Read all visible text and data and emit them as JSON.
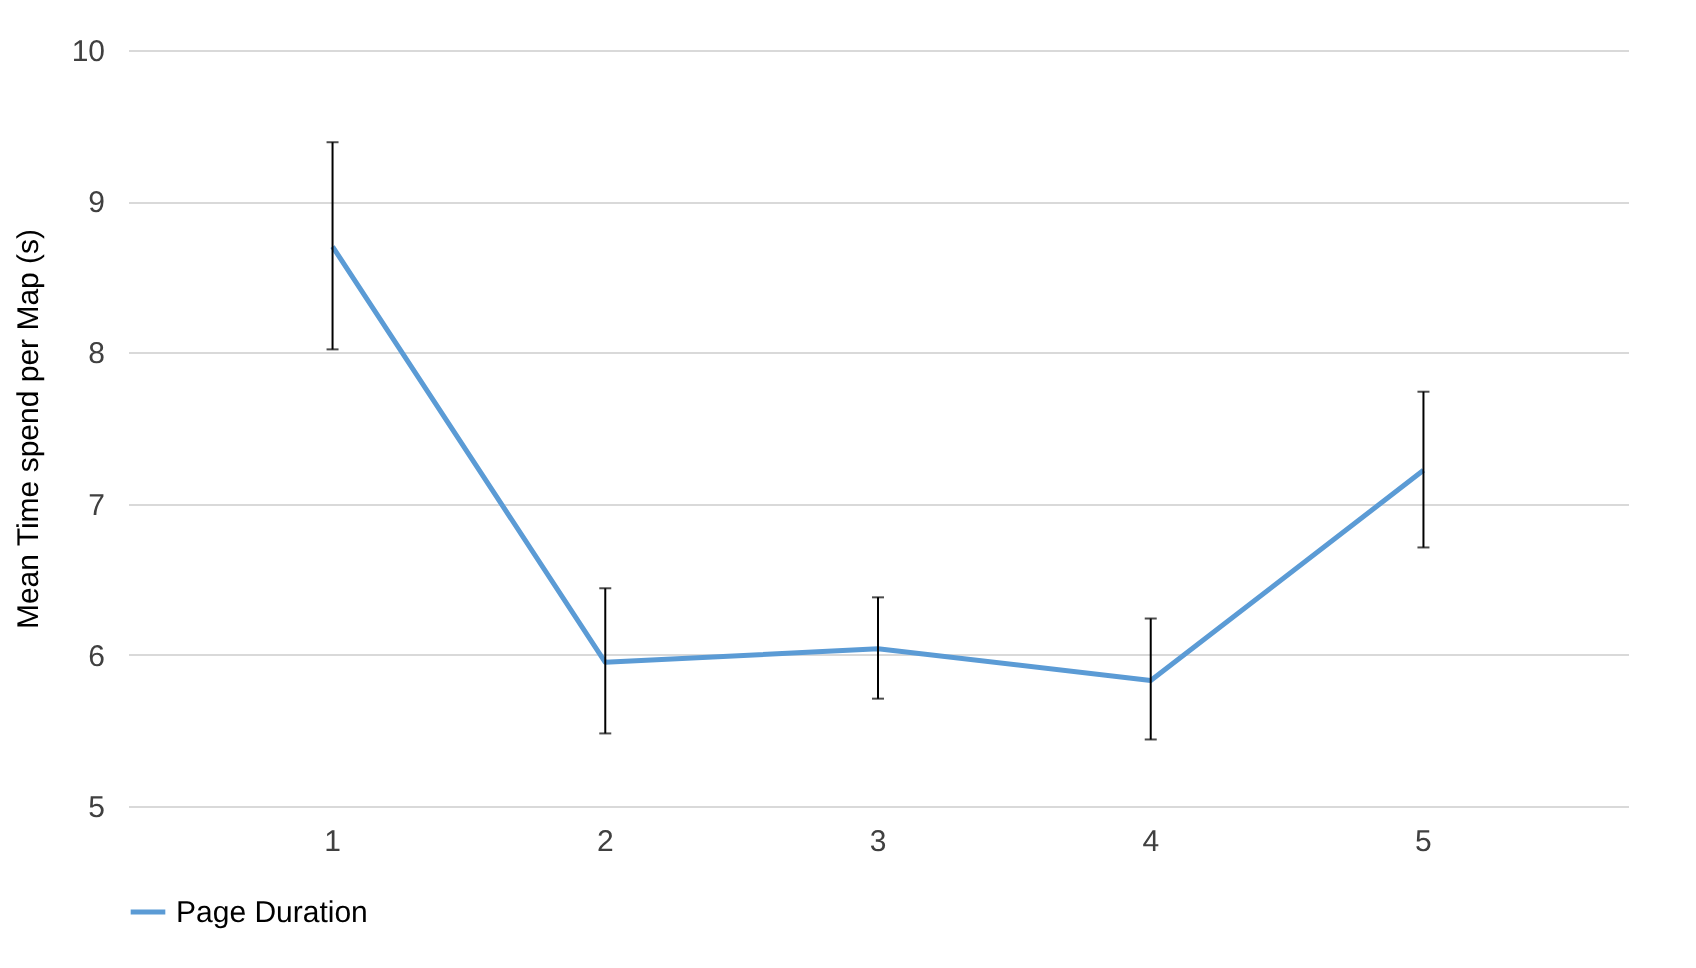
{
  "chart_data": {
    "type": "line",
    "ylabel": "Mean Time spend per Map (s)",
    "categories": [
      "1",
      "2",
      "3",
      "4",
      "5"
    ],
    "series": [
      {
        "name": "Page Duration",
        "color": "#5b9bd5",
        "values": [
          8.7,
          5.95,
          6.04,
          5.83,
          7.22
        ],
        "errors": [
          [
            8.02,
            9.39
          ],
          [
            5.48,
            6.44
          ],
          [
            5.71,
            6.38
          ],
          [
            5.44,
            6.24
          ],
          [
            6.71,
            7.74
          ]
        ]
      }
    ],
    "ylim": [
      5,
      10
    ],
    "yticks": [
      5,
      6,
      7,
      8,
      9,
      10
    ],
    "grid": "y",
    "legend": "bottom",
    "marker": "none",
    "line_style": "solid"
  }
}
